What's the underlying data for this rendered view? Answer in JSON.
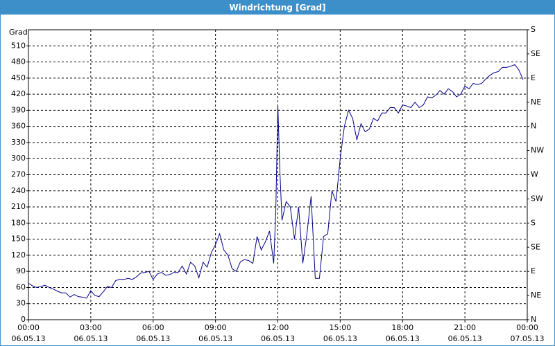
{
  "chart_data": {
    "type": "line",
    "title": "Windrichtung [Grad]",
    "y_label": "Grad",
    "x": [
      0,
      0.2,
      0.4,
      0.6,
      0.8,
      1.0,
      1.2,
      1.4,
      1.6,
      1.8,
      2.0,
      2.2,
      2.4,
      2.6,
      2.8,
      3.0,
      3.2,
      3.4,
      3.6,
      3.8,
      4.0,
      4.2,
      4.4,
      4.6,
      4.8,
      5.0,
      5.2,
      5.4,
      5.6,
      5.8,
      6.0,
      6.2,
      6.4,
      6.6,
      6.8,
      7.0,
      7.2,
      7.4,
      7.6,
      7.8,
      8.0,
      8.2,
      8.4,
      8.6,
      8.8,
      9.0,
      9.2,
      9.4,
      9.6,
      9.8,
      10.0,
      10.2,
      10.4,
      10.6,
      10.8,
      11.0,
      11.2,
      11.4,
      11.6,
      11.8,
      11.9,
      12.0,
      12.1,
      12.2,
      12.4,
      12.6,
      12.8,
      13.0,
      13.2,
      13.4,
      13.6,
      13.8,
      14.0,
      14.2,
      14.4,
      14.6,
      14.8,
      15.0,
      15.2,
      15.4,
      15.6,
      15.8,
      16.0,
      16.2,
      16.4,
      16.6,
      16.8,
      17.0,
      17.2,
      17.4,
      17.6,
      17.8,
      18.0,
      18.2,
      18.4,
      18.6,
      18.8,
      19.0,
      19.2,
      19.4,
      19.6,
      19.8,
      20.0,
      20.2,
      20.4,
      20.6,
      20.8,
      21.0,
      21.2,
      21.4,
      21.6,
      21.8,
      22.0,
      22.2,
      22.4,
      22.6,
      22.8,
      23.0,
      23.2,
      23.4,
      23.6,
      23.8
    ],
    "series": [
      {
        "name": "Windrichtung",
        "color": "#00008b",
        "values": [
          68,
          63,
          60,
          62,
          64,
          60,
          57,
          53,
          50,
          50,
          42,
          47,
          43,
          42,
          40,
          54,
          45,
          43,
          52,
          62,
          60,
          73,
          75,
          75,
          77,
          75,
          80,
          87,
          88,
          90,
          75,
          85,
          88,
          83,
          84,
          88,
          88,
          100,
          85,
          107,
          100,
          78,
          107,
          98,
          125,
          140,
          160,
          130,
          120,
          95,
          90,
          108,
          112,
          110,
          105,
          155,
          130,
          145,
          165,
          105,
          200,
          400,
          275,
          185,
          220,
          210,
          150,
          210,
          105,
          160,
          230,
          77,
          77,
          155,
          160,
          240,
          220,
          300,
          360,
          390,
          375,
          335,
          365,
          350,
          355,
          375,
          370,
          385,
          385,
          395,
          395,
          385,
          400,
          398,
          395,
          405,
          395,
          400,
          415,
          413,
          418,
          427,
          420,
          430,
          425,
          415,
          420,
          435,
          430,
          440,
          438,
          440,
          448,
          455,
          460,
          462,
          470,
          470,
          472,
          475,
          465,
          447
        ]
      }
    ],
    "xlim": [
      0,
      24
    ],
    "xticks": [
      {
        "value": 0,
        "label": "00:00"
      },
      {
        "value": 3,
        "label": "03:00"
      },
      {
        "value": 6,
        "label": "06:00"
      },
      {
        "value": 9,
        "label": "09:00"
      },
      {
        "value": 12,
        "label": "12:00"
      },
      {
        "value": 15,
        "label": "15:00"
      },
      {
        "value": 18,
        "label": "18:00"
      },
      {
        "value": 21,
        "label": "21:00"
      },
      {
        "value": 24,
        "label": "00:00"
      }
    ],
    "xtick_dates": [
      "06.05.13",
      "06.05.13",
      "06.05.13",
      "06.05.13",
      "06.05.13",
      "06.05.13",
      "06.05.13",
      "06.05.13",
      "07.05.13"
    ],
    "ylim": [
      0,
      540
    ],
    "yticks": [
      0,
      30,
      60,
      90,
      120,
      150,
      180,
      210,
      240,
      270,
      300,
      330,
      360,
      390,
      420,
      450,
      480,
      510
    ],
    "y2lim": [
      0,
      540
    ],
    "y2ticks": [
      {
        "value": 0,
        "label": "N"
      },
      {
        "value": 45,
        "label": "NE"
      },
      {
        "value": 90,
        "label": "E"
      },
      {
        "value": 135,
        "label": "SE"
      },
      {
        "value": 180,
        "label": "S"
      },
      {
        "value": 225,
        "label": "SW"
      },
      {
        "value": 270,
        "label": "W"
      },
      {
        "value": 315,
        "label": "NW"
      },
      {
        "value": 360,
        "label": "N"
      },
      {
        "value": 405,
        "label": "NE"
      },
      {
        "value": 450,
        "label": "E"
      },
      {
        "value": 495,
        "label": "SE"
      },
      {
        "value": 540,
        "label": "S"
      }
    ],
    "grid": true
  }
}
